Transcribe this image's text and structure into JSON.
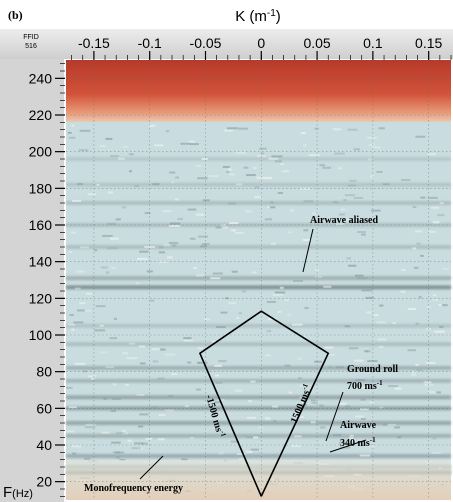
{
  "chart_data": {
    "type": "heatmap",
    "panel_label": "(b)",
    "header_label_line1": "FFID",
    "header_label_line2": "516",
    "xlabel": "K (m",
    "xlabel_sup": "-1",
    "xlabel_close": ")",
    "ylabel": "F",
    "ylabel_unit": "(Hz)",
    "xlim": [
      -0.175,
      0.17
    ],
    "ylim": [
      10,
      250
    ],
    "x_ticks": [
      {
        "value": -0.15,
        "label": "-0.15"
      },
      {
        "value": -0.1,
        "label": "-0.1"
      },
      {
        "value": -0.05,
        "label": "-0.05"
      },
      {
        "value": 0,
        "label": "0"
      },
      {
        "value": 0.05,
        "label": "0.05"
      },
      {
        "value": 0.1,
        "label": "0.1"
      },
      {
        "value": 0.15,
        "label": "0.15"
      }
    ],
    "y_ticks": [
      {
        "value": 20,
        "label": "20"
      },
      {
        "value": 40,
        "label": "40"
      },
      {
        "value": 60,
        "label": "60"
      },
      {
        "value": 80,
        "label": "80"
      },
      {
        "value": 100,
        "label": "100"
      },
      {
        "value": 120,
        "label": "120"
      },
      {
        "value": 140,
        "label": "140"
      },
      {
        "value": 160,
        "label": "160"
      },
      {
        "value": 180,
        "label": "180"
      },
      {
        "value": 200,
        "label": "200"
      },
      {
        "value": 220,
        "label": "220"
      },
      {
        "value": 240,
        "label": "240"
      }
    ],
    "grid": true,
    "colors": {
      "high_band": "#c0392b",
      "background": "#c9dcdf",
      "stripe": "#6f7f80",
      "polygon": "#000000"
    },
    "filter_polygon": [
      [
        0,
        12
      ],
      [
        -0.055,
        90
      ],
      [
        0,
        113
      ],
      [
        0.06,
        90
      ],
      [
        0,
        12
      ]
    ],
    "bands_hz": [
      {
        "f": 25,
        "strength": 0.85
      },
      {
        "f": 28,
        "strength": 0.6
      },
      {
        "f": 34,
        "strength": 0.5
      },
      {
        "f": 45,
        "strength": 0.45
      },
      {
        "f": 52,
        "strength": 0.55
      },
      {
        "f": 60,
        "strength": 0.6
      },
      {
        "f": 66,
        "strength": 0.55
      },
      {
        "f": 75,
        "strength": 0.4
      },
      {
        "f": 82,
        "strength": 0.45
      },
      {
        "f": 95,
        "strength": 0.3
      },
      {
        "f": 105,
        "strength": 0.25
      },
      {
        "f": 126,
        "strength": 0.75
      },
      {
        "f": 131,
        "strength": 0.45
      },
      {
        "f": 148,
        "strength": 0.3
      },
      {
        "f": 160,
        "strength": 0.3
      },
      {
        "f": 172,
        "strength": 0.3
      },
      {
        "f": 182,
        "strength": 0.25
      },
      {
        "f": 196,
        "strength": 0.2
      }
    ],
    "annotations": {
      "airwave_aliased": "Airwave aliased",
      "ground_roll_line1": "Ground roll",
      "ground_roll_line2": "700 ms",
      "ground_roll_sup": "-1",
      "airwave_line1": "Airwave",
      "airwave_line2": "340 ms",
      "airwave_sup": "-1",
      "left_edge": "-1500 ms",
      "left_edge_sup": "-1",
      "right_edge": "1500 ms",
      "right_edge_sup": "-1",
      "monofrequency": "Monofrequency energy"
    }
  }
}
